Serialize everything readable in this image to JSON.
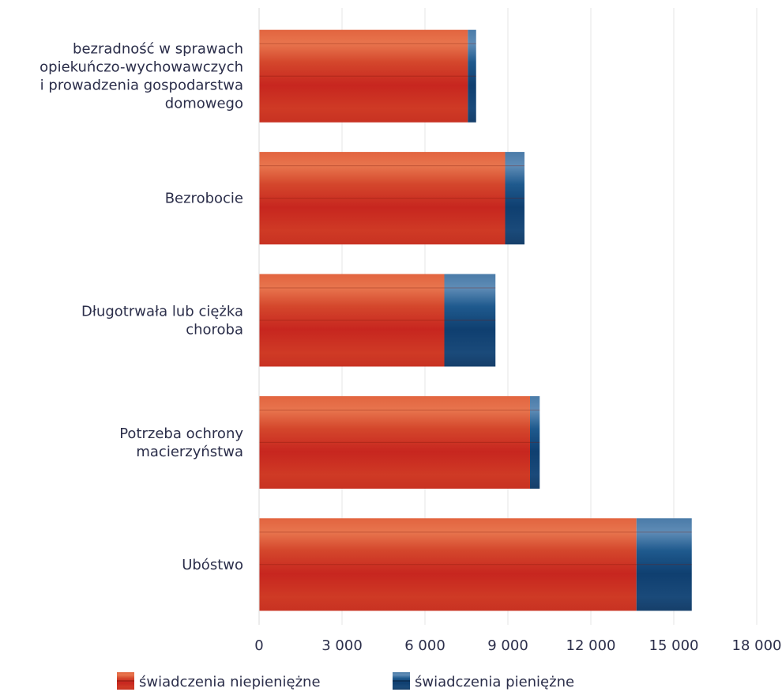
{
  "chart_data": {
    "type": "bar",
    "orientation": "horizontal",
    "stacked": true,
    "categories": [
      [
        "bezradność w sprawach",
        "opiekuńczo-wychowawczych",
        "i prowadzenia gospodarstwa",
        "domowego"
      ],
      [
        "Bezrobocie"
      ],
      [
        "Długotrwała lub ciężka",
        "choroba"
      ],
      [
        "Potrzeba ochrony",
        "macierzyństwa"
      ],
      [
        "Ubóstwo"
      ]
    ],
    "series": [
      {
        "name": "świadczenia niepieniężne",
        "values": [
          7550,
          8900,
          6700,
          9800,
          13650
        ],
        "color": "#d9432a"
      },
      {
        "name": "świadczenia pieniężne",
        "values": [
          300,
          700,
          1850,
          350,
          2000
        ],
        "color": "#1f4f7f"
      }
    ],
    "xlim": [
      0,
      18000
    ],
    "xticks": [
      0,
      3000,
      6000,
      9000,
      12000,
      15000,
      18000
    ],
    "xtick_labels": [
      "0",
      "3 000",
      "6 000",
      "9 000",
      "12 000",
      "15 000",
      "18 000"
    ],
    "grid": true,
    "legend_position": "bottom"
  }
}
